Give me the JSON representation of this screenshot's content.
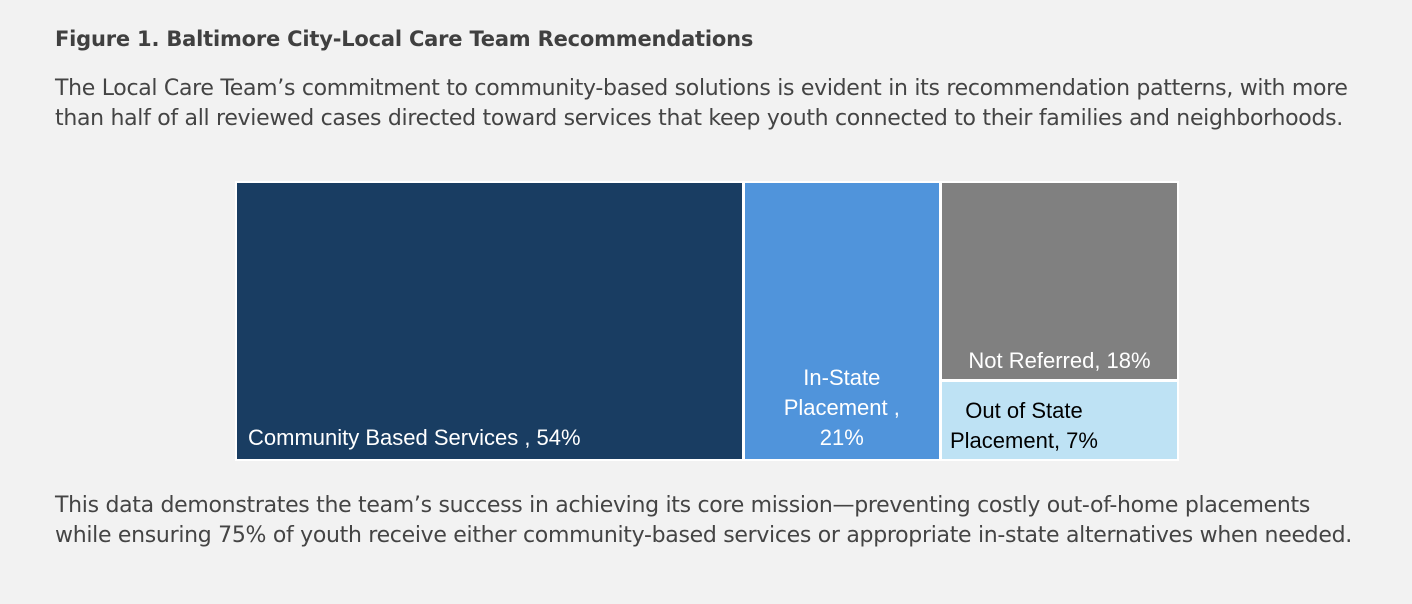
{
  "figure": {
    "title": "Figure 1. Baltimore City-Local Care Team Recommendations",
    "intro_text": "The Local Care Team’s commitment to community-based solutions is evident in its recommendation patterns, with more than half of all reviewed cases directed toward services that keep youth connected to their families and neighborhoods.",
    "outro_text": "This data demonstrates the team’s success in achieving its core mission—preventing costly out-of-home placements while ensuring 75% of youth receive either community-based services or appropriate in-state alternatives when needed."
  },
  "chart_data": {
    "type": "treemap",
    "title": "",
    "items": [
      {
        "name": "Community Based Services",
        "value": 54,
        "label_lines": [
          "Community Based Services , 54%"
        ],
        "color": "#193d62",
        "text_color": "#ffffff"
      },
      {
        "name": "In-State Placement",
        "value": 21,
        "label_lines": [
          "In-State",
          "Placement ,",
          "21%"
        ],
        "color": "#5094db",
        "text_color": "#ffffff"
      },
      {
        "name": "Not Referred",
        "value": 18,
        "label_lines": [
          "Not Referred, 18%"
        ],
        "color": "#808080",
        "text_color": "#ffffff"
      },
      {
        "name": "Out of State Placement",
        "value": 7,
        "label_lines": [
          "Out of State",
          "Placement, 7%"
        ],
        "color": "#bee2f4",
        "text_color": "#000000"
      }
    ]
  }
}
